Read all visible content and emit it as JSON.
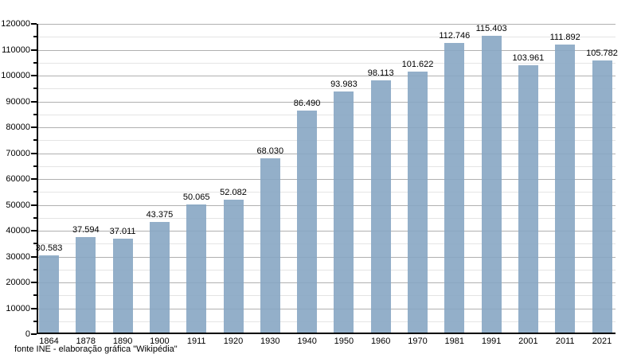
{
  "chart_data": {
    "type": "bar",
    "title": "",
    "categories": [
      "1864",
      "1878",
      "1890",
      "1900",
      "1911",
      "1920",
      "1930",
      "1940",
      "1950",
      "1960",
      "1970",
      "1981",
      "1991",
      "2001",
      "2011",
      "2021"
    ],
    "values": [
      30583,
      37594,
      37011,
      43375,
      50065,
      52082,
      68030,
      86490,
      93983,
      98113,
      101622,
      112746,
      115403,
      103961,
      111892,
      105782
    ],
    "value_labels": [
      "30.583",
      "37.594",
      "37.011",
      "43.375",
      "50.065",
      "52.082",
      "68.030",
      "86.490",
      "93.983",
      "98.113",
      "101.622",
      "112.746",
      "115.403",
      "103.961",
      "111.892",
      "105.782"
    ],
    "xlabel": "",
    "ylabel": "",
    "ylim": [
      0,
      120000
    ],
    "ytick_major": 10000,
    "ytick_minor": 5000,
    "ytick_labels": [
      "0",
      "10000",
      "20000",
      "30000",
      "40000",
      "50000",
      "60000",
      "70000",
      "80000",
      "90000",
      "100000",
      "110000",
      "120000"
    ],
    "grid": true,
    "legend": "none",
    "source": "fonte INE - elaboração gráfica \"Wikipédia\"",
    "colors": {
      "bar_fill": "#87A6C3",
      "bar_opacity": 0.9,
      "grid_major": "#b0b0b0",
      "grid_minor": "#e4e4e4",
      "axis": "#000000",
      "text": "#000000",
      "background": "#ffffff"
    }
  }
}
